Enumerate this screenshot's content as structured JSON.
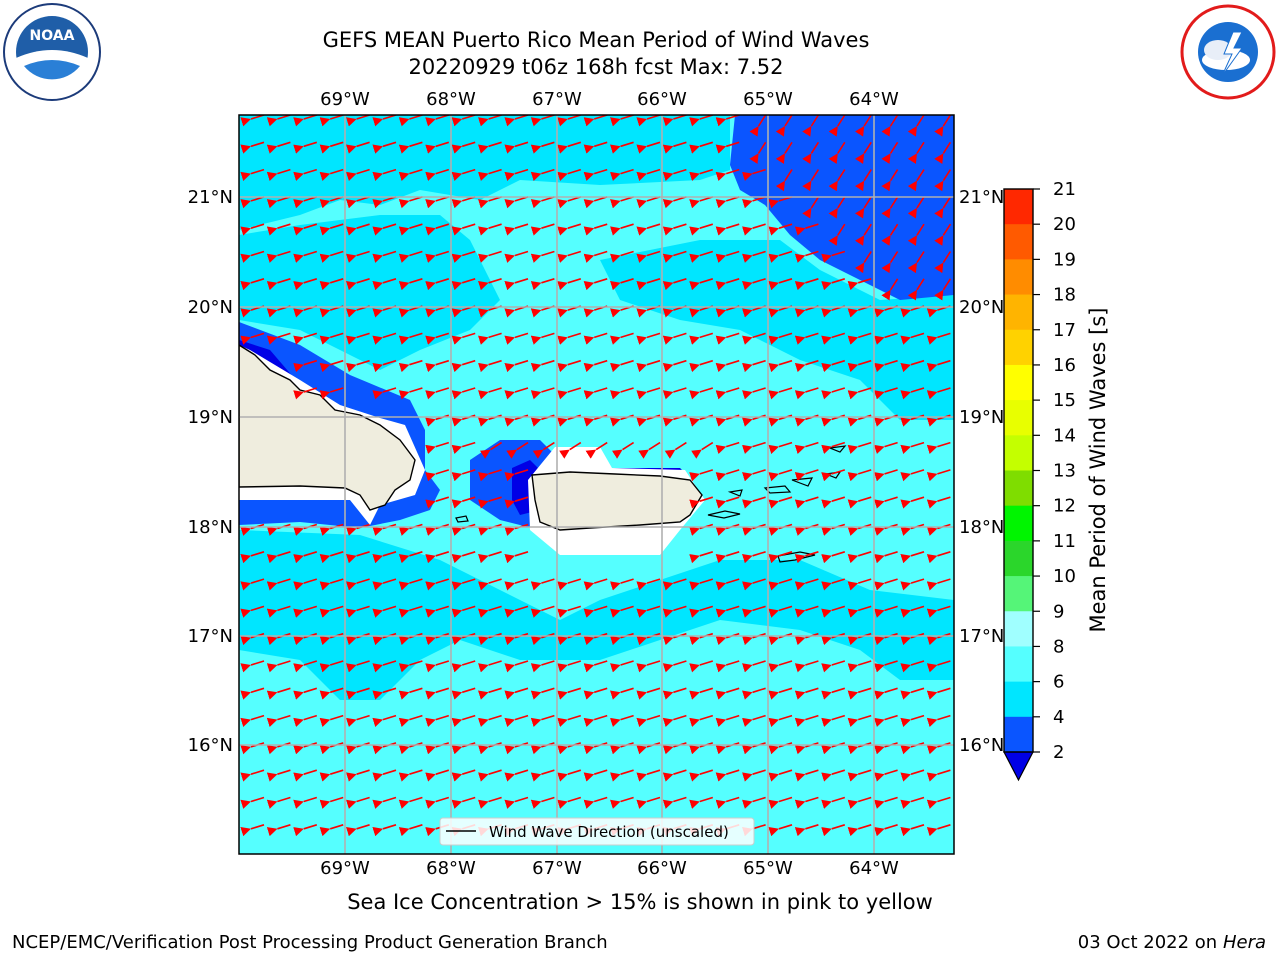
{
  "title": {
    "line1": "GEFS MEAN Puerto Rico Mean Period of Wind Waves",
    "line2": "20220929 t06z 168h fcst   Max: 7.52"
  },
  "logos": {
    "left": {
      "icon": "noaa-logo",
      "text": "NOAA"
    },
    "right": {
      "icon": "nws-logo",
      "text": "NATIONAL WEATHER SERVICE"
    }
  },
  "map": {
    "lon_labels": [
      "69°W",
      "68°W",
      "67°W",
      "66°W",
      "65°W",
      "64°W"
    ],
    "lat_labels": [
      "21°N",
      "20°N",
      "19°N",
      "18°N",
      "17°N",
      "16°N"
    ],
    "legend_label": "Wind Wave Direction (unscaled)",
    "vector_color": "#ff0000",
    "land_color": "#efedde"
  },
  "colorbar": {
    "title": "Mean Period of Wind Waves [s]",
    "ticks": [
      "2",
      "4",
      "6",
      "8",
      "9",
      "10",
      "11",
      "12",
      "13",
      "14",
      "15",
      "16",
      "17",
      "18",
      "19",
      "20",
      "21"
    ],
    "colors": [
      "#0a55ff",
      "#00e6ff",
      "#55ffff",
      "#a0ffff",
      "#55f578",
      "#2bd62b",
      "#00f500",
      "#7fdd00",
      "#c4ff00",
      "#e8ff00",
      "#ffff00",
      "#ffd200",
      "#ffb400",
      "#ff8c00",
      "#ff5a00",
      "#ff2800"
    ],
    "under_color": "#0000e6"
  },
  "sea_ice_note": "Sea Ice Concentration > 15% is shown in pink to yellow",
  "footer": {
    "left": "NCEP/EMC/Verification Post Processing Product Generation Branch",
    "right_prefix": "03 Oct 2022 on ",
    "right_host": "Hera"
  }
}
